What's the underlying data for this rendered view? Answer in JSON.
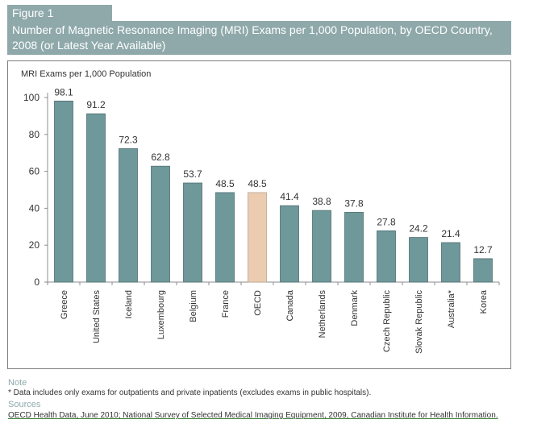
{
  "figure_label": "Figure 1",
  "figure_title": "Number of Magnetic Resonance Imaging (MRI) Exams per 1,000 Population,  by OECD Country, 2008 (or Latest Year Available)",
  "chart_data": {
    "type": "bar",
    "ylabel": "MRI Exams per 1,000 Population",
    "ylim": [
      0,
      100
    ],
    "yticks": [
      0,
      20,
      40,
      60,
      80,
      100
    ],
    "grid": false,
    "categories": [
      "Greece",
      "United States",
      "Iceland",
      "Luxembourg",
      "Belgium",
      "France",
      "OECD",
      "Canada",
      "Netherlands",
      "Denmark",
      "Czech Republic",
      "Slovak Republic",
      "Australia*",
      "Korea"
    ],
    "values": [
      98.1,
      91.2,
      72.3,
      62.8,
      53.7,
      48.5,
      48.5,
      41.4,
      38.8,
      37.8,
      27.8,
      24.2,
      21.4,
      12.7
    ],
    "data_labels": [
      "98.1",
      "91.2",
      "72.3",
      "62.8",
      "53.7",
      "48.5",
      "48.5",
      "41.4",
      "38.8",
      "37.8",
      "27.8",
      "24.2",
      "21.4",
      "12.7"
    ],
    "bar_color": "#6e989a",
    "highlight_color": "#ecccb1",
    "highlight_category": "OECD"
  },
  "note": {
    "heading": "Note",
    "text": "* Data includes only exams for outpatients and private inpatients (excludes exams in public hospitals)."
  },
  "sources": {
    "heading": "Sources",
    "text": "OECD Health Data, June 2010; National Survey of Selected Medical Imaging Equipment, 2009, Canadian Institute for Health Information."
  }
}
